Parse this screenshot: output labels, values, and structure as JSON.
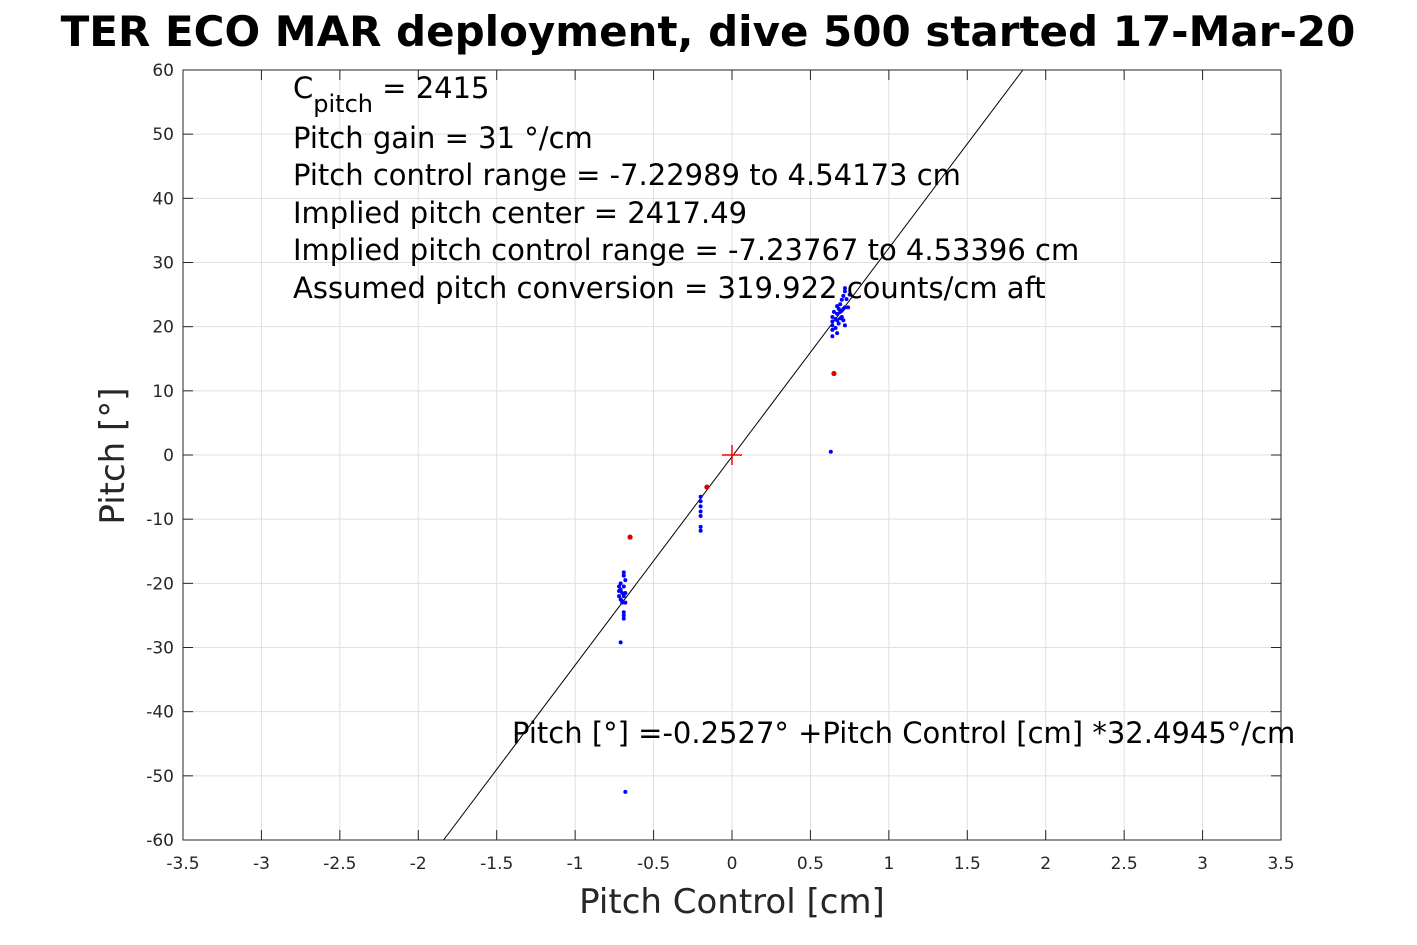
{
  "chart_data": {
    "type": "scatter",
    "title": "TER ECO MAR deployment, dive 500 started 17-Mar-20",
    "xlabel": "Pitch Control [cm]",
    "ylabel": "Pitch [°]",
    "xlim": [
      -3.5,
      3.5
    ],
    "ylim": [
      -60,
      60
    ],
    "xticks": [
      -3.5,
      -3,
      -2.5,
      -2,
      -1.5,
      -1,
      -0.5,
      0,
      0.5,
      1,
      1.5,
      2,
      2.5,
      3,
      3.5
    ],
    "yticks": [
      -60,
      -50,
      -40,
      -30,
      -20,
      -10,
      0,
      10,
      20,
      30,
      40,
      50,
      60
    ],
    "xtick_labels": [
      "-3.5",
      "-3",
      "-2.5",
      "-2",
      "-1.5",
      "-1",
      "-0.5",
      "0",
      "0.5",
      "1",
      "1.5",
      "2",
      "2.5",
      "3",
      "3.5"
    ],
    "ytick_labels": [
      "-60",
      "-50",
      "-40",
      "-30",
      "-20",
      "-10",
      "0",
      "10",
      "20",
      "30",
      "40",
      "50",
      "60"
    ],
    "grid": true,
    "annotations": {
      "c_pitch_symbol": "C",
      "c_pitch_subscript": "pitch",
      "c_pitch_value": " = 2415",
      "pitch_gain": "Pitch gain = 31 °/cm",
      "pitch_control_range": "Pitch control range = -7.22989 to 4.54173 cm",
      "implied_pitch_center": "Implied pitch center = 2417.49",
      "implied_pitch_control_range": "Implied pitch control range = -7.23767 to 4.53396 cm",
      "assumed_pitch_conversion": "Assumed pitch conversion = 319.922 counts/cm aft",
      "fit_equation": "Pitch [°] =-0.2527° +Pitch Control [cm] *32.4945°/cm"
    },
    "fit_line": {
      "intercept": -0.2527,
      "slope": 32.4945,
      "color": "#000000"
    },
    "center_marker": {
      "x": 0,
      "y": 0,
      "color": "#ff0000"
    },
    "series": [
      {
        "color": "#0000ff",
        "points": [
          [
            -0.72,
            -20.5
          ],
          [
            -0.71,
            -21.0
          ],
          [
            -0.7,
            -21.5
          ],
          [
            -0.72,
            -22.0
          ],
          [
            -0.71,
            -22.5
          ],
          [
            -0.7,
            -23.0
          ],
          [
            -0.69,
            -22.0
          ],
          [
            -0.68,
            -21.5
          ],
          [
            -0.69,
            -20.5
          ],
          [
            -0.68,
            -19.5
          ],
          [
            -0.69,
            -18.8
          ],
          [
            -0.69,
            -18.3
          ],
          [
            -0.7,
            -22.8
          ],
          [
            -0.68,
            -23.0
          ],
          [
            -0.69,
            -24.5
          ],
          [
            -0.69,
            -25.0
          ],
          [
            -0.69,
            -25.5
          ],
          [
            -0.71,
            -20.0
          ],
          [
            -0.72,
            -21.2
          ],
          [
            -0.71,
            -29.2
          ],
          [
            -0.68,
            -52.5
          ],
          [
            -0.2,
            -6.5
          ],
          [
            -0.2,
            -7.2
          ],
          [
            -0.2,
            -8.0
          ],
          [
            -0.2,
            -8.8
          ],
          [
            -0.2,
            -9.5
          ],
          [
            -0.2,
            -11.2
          ],
          [
            -0.2,
            -11.8
          ],
          [
            0.63,
            0.5
          ],
          [
            0.64,
            18.5
          ],
          [
            0.64,
            19.5
          ],
          [
            0.64,
            20.2
          ],
          [
            0.64,
            20.8
          ],
          [
            0.64,
            21.5
          ],
          [
            0.65,
            22.3
          ],
          [
            0.66,
            19.8
          ],
          [
            0.67,
            19.0
          ],
          [
            0.67,
            21.0
          ],
          [
            0.67,
            22.0
          ],
          [
            0.67,
            23.2
          ],
          [
            0.68,
            20.5
          ],
          [
            0.69,
            21.3
          ],
          [
            0.69,
            22.3
          ],
          [
            0.69,
            23.5
          ],
          [
            0.7,
            21.5
          ],
          [
            0.7,
            22.5
          ],
          [
            0.7,
            24.2
          ],
          [
            0.71,
            21.0
          ],
          [
            0.71,
            22.8
          ],
          [
            0.71,
            24.8
          ],
          [
            0.72,
            23.0
          ],
          [
            0.72,
            25.5
          ],
          [
            0.72,
            26.0
          ],
          [
            0.72,
            20.2
          ],
          [
            0.73,
            24.3
          ],
          [
            0.74,
            23.0
          ],
          [
            0.75,
            25.0
          ],
          [
            0.68,
            22.8
          ],
          [
            0.66,
            21.2
          ]
        ]
      },
      {
        "color": "#dd0000",
        "points": [
          [
            -0.65,
            -12.8
          ],
          [
            -0.16,
            -5.0
          ],
          [
            0.65,
            12.7
          ]
        ]
      }
    ]
  }
}
